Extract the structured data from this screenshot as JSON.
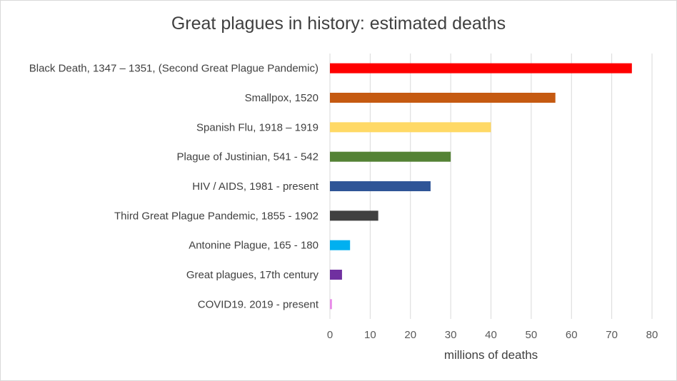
{
  "chart_data": {
    "type": "bar",
    "orientation": "horizontal",
    "title": "Great plagues in history: estimated deaths",
    "xlabel": "millions of deaths",
    "ylabel": "",
    "xlim": [
      0,
      80
    ],
    "xticks": [
      0,
      10,
      20,
      30,
      40,
      50,
      60,
      70,
      80
    ],
    "grid": "vertical",
    "legend": "none",
    "categories": [
      "Black Death, 1347 – 1351, (Second Great Plague Pandemic)",
      "Smallpox, 1520",
      "Spanish Flu, 1918 – 1919",
      "Plague of Justinian, 541 - 542",
      "HIV / AIDS, 1981 - present",
      "Third Great Plague Pandemic, 1855 - 1902",
      "Antonine Plague, 165 - 180",
      "Great plagues, 17th century",
      "COVID19. 2019 - present"
    ],
    "values": [
      75,
      56,
      40,
      30,
      25,
      12,
      5,
      3,
      0.5
    ],
    "colors": [
      "#ff0000",
      "#c55a11",
      "#ffd966",
      "#548235",
      "#2f5597",
      "#404040",
      "#00b0f0",
      "#7030a0",
      "#e88ae8"
    ]
  }
}
